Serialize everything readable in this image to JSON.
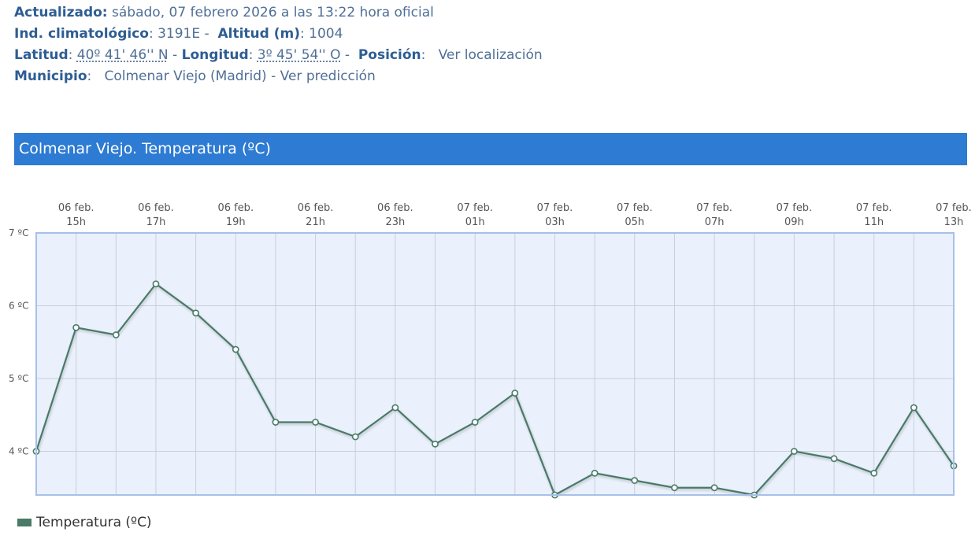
{
  "station": {
    "updated_label": "Actualizado:",
    "updated_value": "sábado, 07 febrero 2026 a las 13:22 hora oficial",
    "climate_index_label": "Ind. climatológico",
    "climate_index_value": "3191E",
    "altitude_label": "Altitud (m)",
    "altitude_value": "1004",
    "latitude_label": "Latitud",
    "latitude_value": "40º 41' 46'' N",
    "longitude_label": "Longitud",
    "longitude_value": "3º 45' 54'' O",
    "position_label": "Posición",
    "position_link": "Ver localización",
    "municipality_label": "Municipio",
    "municipality_value": "Colmenar Viejo (Madrid)",
    "prediction_link": "Ver predicción"
  },
  "colors": {
    "header_bg": "#2d7bd2",
    "plot_bg": "#eaf1fc",
    "plot_border": "#a7c0e8",
    "grid": "#c9cfd8",
    "series": "#4a7a68"
  },
  "chart_data": {
    "type": "line",
    "title": "Colmenar Viejo. Temperatura (ºC)",
    "x": [
      "06 feb. 14h",
      "06 feb. 15h",
      "06 feb. 16h",
      "06 feb. 17h",
      "06 feb. 18h",
      "06 feb. 19h",
      "06 feb. 20h",
      "06 feb. 21h",
      "06 feb. 22h",
      "06 feb. 23h",
      "07 feb. 00h",
      "07 feb. 01h",
      "07 feb. 02h",
      "07 feb. 03h",
      "07 feb. 04h",
      "07 feb. 05h",
      "07 feb. 06h",
      "07 feb. 07h",
      "07 feb. 08h",
      "07 feb. 09h",
      "07 feb. 10h",
      "07 feb. 11h",
      "07 feb. 12h",
      "07 feb. 13h"
    ],
    "x_ticks": [
      {
        "line1": "06 feb.",
        "line2": "15h"
      },
      {
        "line1": "06 feb.",
        "line2": "17h"
      },
      {
        "line1": "06 feb.",
        "line2": "19h"
      },
      {
        "line1": "06 feb.",
        "line2": "21h"
      },
      {
        "line1": "06 feb.",
        "line2": "23h"
      },
      {
        "line1": "07 feb.",
        "line2": "01h"
      },
      {
        "line1": "07 feb.",
        "line2": "03h"
      },
      {
        "line1": "07 feb.",
        "line2": "05h"
      },
      {
        "line1": "07 feb.",
        "line2": "07h"
      },
      {
        "line1": "07 feb.",
        "line2": "09h"
      },
      {
        "line1": "07 feb.",
        "line2": "11h"
      },
      {
        "line1": "07 feb.",
        "line2": "13h"
      }
    ],
    "y_ticks": [
      4,
      5,
      6,
      7
    ],
    "y_tick_labels": [
      "4 ºC",
      "5 ºC",
      "6 ºC",
      "7 ºC"
    ],
    "ylim": [
      3.4,
      7.0
    ],
    "grid": true,
    "legend": "bottom-left",
    "series": [
      {
        "name": "Temperatura (ºC)",
        "values": [
          4.0,
          5.7,
          5.6,
          6.3,
          5.9,
          5.4,
          4.4,
          4.4,
          4.2,
          4.6,
          4.1,
          4.4,
          4.8,
          3.4,
          3.7,
          3.6,
          3.5,
          3.5,
          3.4,
          4.0,
          3.9,
          3.7,
          4.6,
          3.8
        ]
      }
    ]
  }
}
